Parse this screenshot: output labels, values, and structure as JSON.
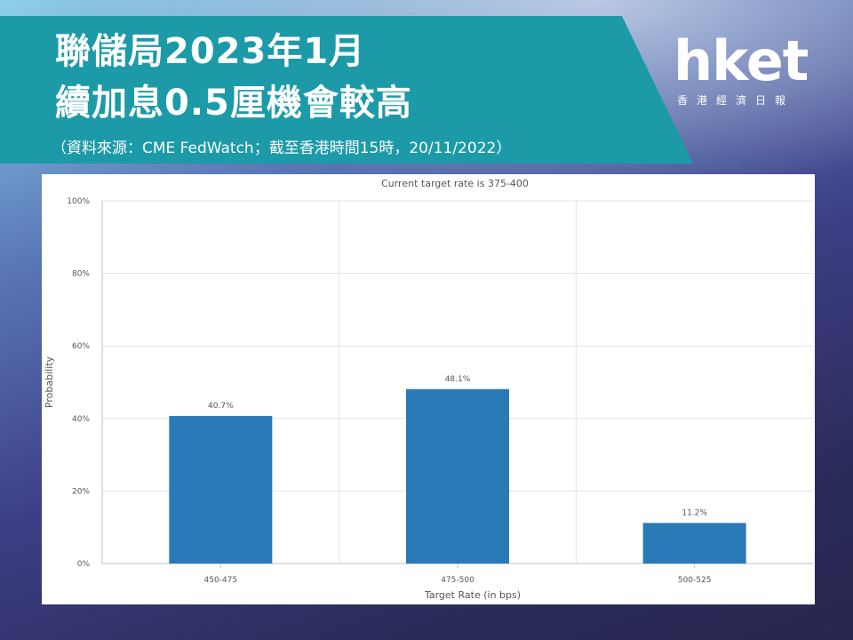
{
  "header": {
    "title_line1": "聯儲局2023年1月",
    "title_line2": "續加息0.5厘機會較高",
    "source_note": "（資料來源：CME FedWatch；截至香港時間15時，20/11/2022）"
  },
  "logo": {
    "wordmark": "hket",
    "subtitle": "香港經濟日報"
  },
  "colors": {
    "banner": "#1c9aa8",
    "bar": "#2a7ab8"
  },
  "chart_data": {
    "type": "bar",
    "title": "Current target rate is 375-400",
    "xlabel": "Target Rate (in bps)",
    "ylabel": "Probability",
    "categories": [
      "450-475",
      "475-500",
      "500-525"
    ],
    "values": [
      40.7,
      48.1,
      11.2
    ],
    "data_labels": [
      "40.7%",
      "48.1%",
      "11.2%"
    ],
    "ylim": [
      0,
      100
    ],
    "y_ticks": [
      0,
      20,
      40,
      60,
      80,
      100
    ],
    "y_tick_labels": [
      "0%",
      "20%",
      "40%",
      "60%",
      "80%",
      "100%"
    ],
    "grid": true,
    "legend": "none"
  }
}
